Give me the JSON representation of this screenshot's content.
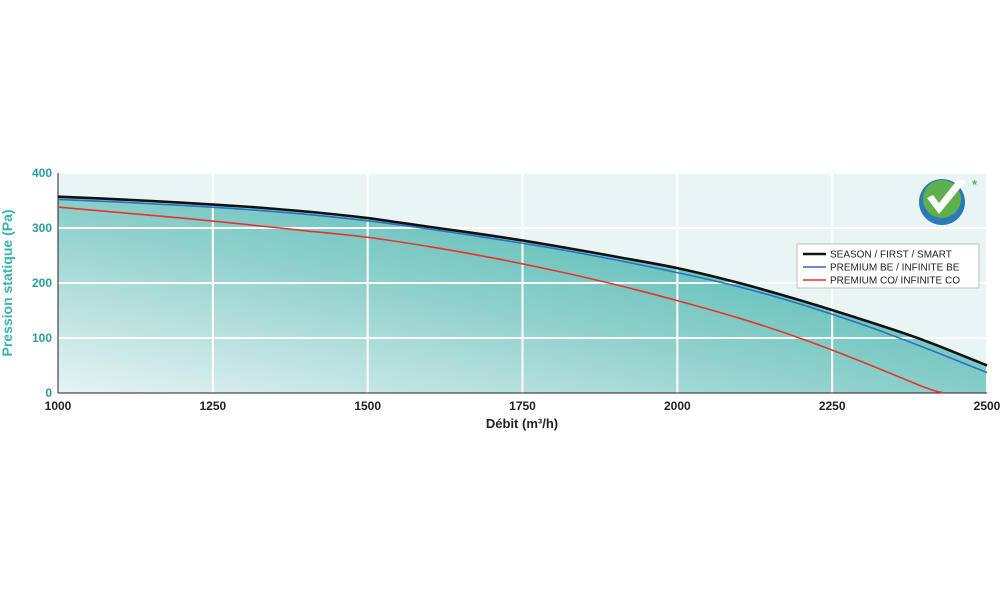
{
  "chart_data": {
    "type": "line",
    "xlabel": "Débit (m³/h)",
    "ylabel": "Pression statique (Pa)",
    "xlim": [
      1000,
      2500
    ],
    "ylim": [
      0,
      400
    ],
    "x_ticks": [
      "1000",
      "1250",
      "1500",
      "1750",
      "2000",
      "2250",
      "2500"
    ],
    "y_ticks": [
      "0",
      "100",
      "200",
      "300",
      "400"
    ],
    "grid": true,
    "legend_position": "right",
    "series": [
      {
        "name": "SEASON / FIRST / SMART",
        "color": "#111111",
        "x": [
          1000,
          1100,
          1200,
          1300,
          1400,
          1500,
          1600,
          1700,
          1800,
          1900,
          2000,
          2100,
          2200,
          2300,
          2400,
          2500
        ],
        "y": [
          357,
          352,
          346,
          339,
          330,
          318,
          302,
          286,
          268,
          248,
          227,
          200,
          168,
          133,
          95,
          50
        ]
      },
      {
        "name": "PREMIUM BE / INFINITE BE",
        "color": "#2f6fc0",
        "x": [
          1000,
          1100,
          1200,
          1300,
          1400,
          1500,
          1600,
          1700,
          1800,
          1900,
          2000,
          2100,
          2200,
          2300,
          2400,
          2500
        ],
        "y": [
          352,
          347,
          341,
          334,
          325,
          313,
          298,
          281,
          263,
          242,
          219,
          193,
          161,
          124,
          82,
          37
        ]
      },
      {
        "name": "PREMIUM CO/ INFINITE CO",
        "color": "#e8332a",
        "x": [
          1000,
          1100,
          1200,
          1300,
          1400,
          1500,
          1600,
          1700,
          1800,
          1900,
          2000,
          2100,
          2200,
          2300,
          2400,
          2430
        ],
        "y": [
          338,
          328,
          318,
          307,
          295,
          283,
          266,
          246,
          223,
          197,
          168,
          136,
          99,
          56,
          10,
          0
        ]
      }
    ]
  },
  "logo": {
    "name": "checkmark-certification-logo",
    "mark": "*"
  }
}
